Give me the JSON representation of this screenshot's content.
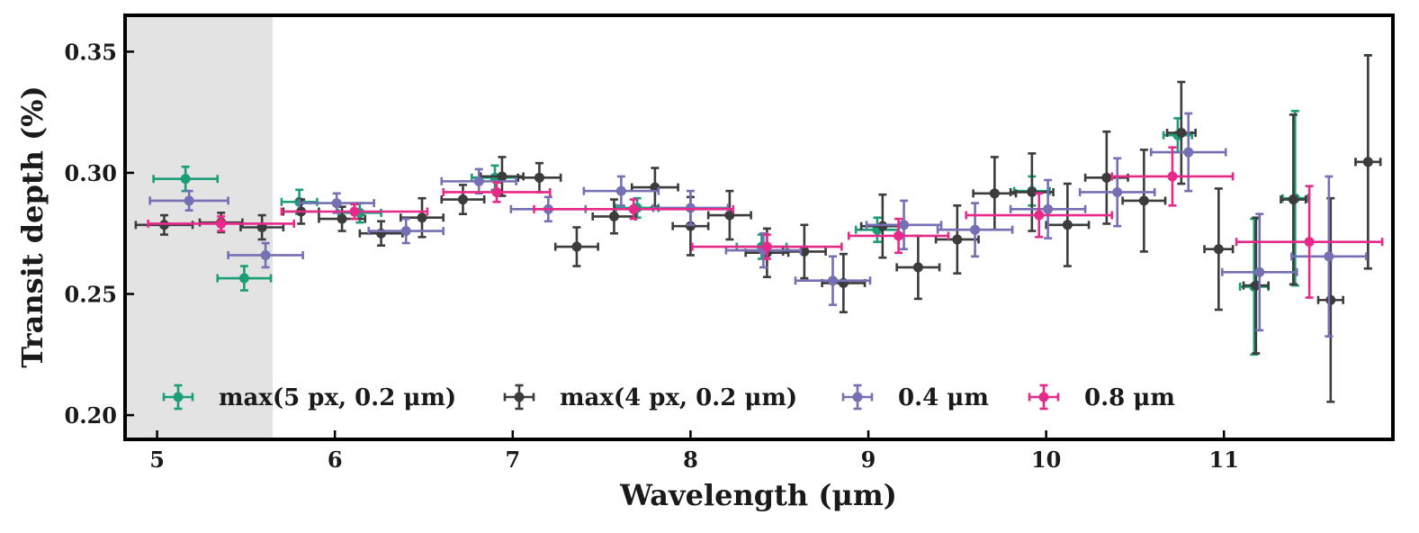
{
  "chart_data": {
    "type": "scatter",
    "title": "",
    "xlabel": "Wavelength (μm)",
    "ylabel": "Transit depth (%)",
    "xlim": [
      4.82,
      11.95
    ],
    "ylim": [
      0.19,
      0.365
    ],
    "x_ticks": [
      5,
      6,
      7,
      8,
      9,
      10,
      11
    ],
    "x_tick_labels": [
      "5",
      "6",
      "7",
      "8",
      "9",
      "10",
      "11"
    ],
    "y_ticks": [
      0.2,
      0.25,
      0.3,
      0.35
    ],
    "y_tick_labels": [
      "0.20",
      "0.25",
      "0.30",
      "0.35"
    ],
    "shaded_region": {
      "x_start": 4.82,
      "x_end": 5.65,
      "color": "#e3e3e3"
    },
    "grid": false,
    "legend_position": "bottom-left",
    "series": [
      {
        "name": "max(5 px, 0.2 μm)",
        "color": "#1b9e77",
        "points": [
          {
            "x": 5.16,
            "y": 0.2975,
            "xerr": 0.18,
            "yerr": 0.005
          },
          {
            "x": 5.49,
            "y": 0.2565,
            "xerr": 0.15,
            "yerr": 0.005
          },
          {
            "x": 5.8,
            "y": 0.288,
            "xerr": 0.1,
            "yerr": 0.005
          },
          {
            "x": 6.14,
            "y": 0.2835,
            "xerr": 0.12,
            "yerr": 0.004
          },
          {
            "x": 6.9,
            "y": 0.298,
            "xerr": 0.13,
            "yerr": 0.005
          },
          {
            "x": 7.7,
            "y": 0.2855,
            "xerr": 0.12,
            "yerr": 0.004
          },
          {
            "x": 8.4,
            "y": 0.2695,
            "xerr": 0.14,
            "yerr": 0.005
          },
          {
            "x": 9.05,
            "y": 0.2765,
            "xerr": 0.12,
            "yerr": 0.005
          },
          {
            "x": 9.92,
            "y": 0.2925,
            "xerr": 0.1,
            "yerr": 0.006
          },
          {
            "x": 10.74,
            "y": 0.3155,
            "xerr": 0.08,
            "yerr": 0.007
          },
          {
            "x": 11.17,
            "y": 0.253,
            "xerr": 0.08,
            "yerr": 0.028
          },
          {
            "x": 11.4,
            "y": 0.2895,
            "xerr": 0.07,
            "yerr": 0.036
          },
          {
            "x": 11.81,
            "y": 0.3045,
            "xerr": 0.07,
            "yerr": 0.044
          }
        ]
      },
      {
        "name": "max(4 px, 0.2 μm)",
        "color": "#3c3c3c",
        "points": [
          {
            "x": 5.04,
            "y": 0.2785,
            "xerr": 0.16,
            "yerr": 0.004
          },
          {
            "x": 5.36,
            "y": 0.2795,
            "xerr": 0.12,
            "yerr": 0.004
          },
          {
            "x": 5.59,
            "y": 0.2775,
            "xerr": 0.12,
            "yerr": 0.005
          },
          {
            "x": 5.81,
            "y": 0.284,
            "xerr": 0.1,
            "yerr": 0.005
          },
          {
            "x": 6.04,
            "y": 0.281,
            "xerr": 0.13,
            "yerr": 0.005
          },
          {
            "x": 6.26,
            "y": 0.275,
            "xerr": 0.12,
            "yerr": 0.005
          },
          {
            "x": 6.49,
            "y": 0.2815,
            "xerr": 0.12,
            "yerr": 0.008
          },
          {
            "x": 6.72,
            "y": 0.289,
            "xerr": 0.12,
            "yerr": 0.006
          },
          {
            "x": 6.94,
            "y": 0.2985,
            "xerr": 0.12,
            "yerr": 0.008
          },
          {
            "x": 7.15,
            "y": 0.298,
            "xerr": 0.12,
            "yerr": 0.006
          },
          {
            "x": 7.36,
            "y": 0.2695,
            "xerr": 0.12,
            "yerr": 0.008
          },
          {
            "x": 7.57,
            "y": 0.282,
            "xerr": 0.12,
            "yerr": 0.007
          },
          {
            "x": 7.8,
            "y": 0.294,
            "xerr": 0.13,
            "yerr": 0.008
          },
          {
            "x": 8.0,
            "y": 0.278,
            "xerr": 0.1,
            "yerr": 0.012
          },
          {
            "x": 8.22,
            "y": 0.2825,
            "xerr": 0.12,
            "yerr": 0.01
          },
          {
            "x": 8.43,
            "y": 0.267,
            "xerr": 0.12,
            "yerr": 0.01
          },
          {
            "x": 8.64,
            "y": 0.2675,
            "xerr": 0.12,
            "yerr": 0.011
          },
          {
            "x": 8.86,
            "y": 0.2545,
            "xerr": 0.12,
            "yerr": 0.012
          },
          {
            "x": 9.08,
            "y": 0.278,
            "xerr": 0.12,
            "yerr": 0.013
          },
          {
            "x": 9.28,
            "y": 0.261,
            "xerr": 0.12,
            "yerr": 0.013
          },
          {
            "x": 9.5,
            "y": 0.2725,
            "xerr": 0.12,
            "yerr": 0.014
          },
          {
            "x": 9.71,
            "y": 0.2915,
            "xerr": 0.12,
            "yerr": 0.015
          },
          {
            "x": 9.92,
            "y": 0.292,
            "xerr": 0.12,
            "yerr": 0.016
          },
          {
            "x": 10.12,
            "y": 0.2785,
            "xerr": 0.12,
            "yerr": 0.017
          },
          {
            "x": 10.34,
            "y": 0.298,
            "xerr": 0.12,
            "yerr": 0.019
          },
          {
            "x": 10.55,
            "y": 0.2885,
            "xerr": 0.12,
            "yerr": 0.021
          },
          {
            "x": 10.76,
            "y": 0.3165,
            "xerr": 0.08,
            "yerr": 0.021
          },
          {
            "x": 10.97,
            "y": 0.2685,
            "xerr": 0.08,
            "yerr": 0.025
          },
          {
            "x": 11.18,
            "y": 0.2535,
            "xerr": 0.07,
            "yerr": 0.028
          },
          {
            "x": 11.39,
            "y": 0.289,
            "xerr": 0.07,
            "yerr": 0.035
          },
          {
            "x": 11.6,
            "y": 0.2475,
            "xerr": 0.07,
            "yerr": 0.042
          },
          {
            "x": 11.81,
            "y": 0.3045,
            "xerr": 0.07,
            "yerr": 0.044
          }
        ]
      },
      {
        "name": "0.4 μm",
        "color": "#7570b3",
        "points": [
          {
            "x": 5.18,
            "y": 0.2885,
            "xerr": 0.22,
            "yerr": 0.004
          },
          {
            "x": 5.61,
            "y": 0.266,
            "xerr": 0.21,
            "yerr": 0.005
          },
          {
            "x": 6.01,
            "y": 0.2875,
            "xerr": 0.21,
            "yerr": 0.004
          },
          {
            "x": 6.4,
            "y": 0.276,
            "xerr": 0.21,
            "yerr": 0.005
          },
          {
            "x": 6.81,
            "y": 0.2965,
            "xerr": 0.21,
            "yerr": 0.005
          },
          {
            "x": 7.2,
            "y": 0.285,
            "xerr": 0.21,
            "yerr": 0.005
          },
          {
            "x": 7.61,
            "y": 0.2925,
            "xerr": 0.21,
            "yerr": 0.006
          },
          {
            "x": 8.0,
            "y": 0.2855,
            "xerr": 0.21,
            "yerr": 0.007
          },
          {
            "x": 8.41,
            "y": 0.268,
            "xerr": 0.21,
            "yerr": 0.007
          },
          {
            "x": 8.8,
            "y": 0.2555,
            "xerr": 0.21,
            "yerr": 0.01
          },
          {
            "x": 9.2,
            "y": 0.2785,
            "xerr": 0.21,
            "yerr": 0.01
          },
          {
            "x": 9.6,
            "y": 0.2765,
            "xerr": 0.21,
            "yerr": 0.011
          },
          {
            "x": 10.01,
            "y": 0.285,
            "xerr": 0.21,
            "yerr": 0.012
          },
          {
            "x": 10.4,
            "y": 0.292,
            "xerr": 0.21,
            "yerr": 0.014
          },
          {
            "x": 10.8,
            "y": 0.3085,
            "xerr": 0.21,
            "yerr": 0.016
          },
          {
            "x": 11.2,
            "y": 0.259,
            "xerr": 0.21,
            "yerr": 0.024
          },
          {
            "x": 11.59,
            "y": 0.2655,
            "xerr": 0.21,
            "yerr": 0.033
          }
        ]
      },
      {
        "name": "0.8 μm",
        "color": "#e7298a",
        "points": [
          {
            "x": 5.36,
            "y": 0.279,
            "xerr": 0.41,
            "yerr": 0.003
          },
          {
            "x": 6.11,
            "y": 0.284,
            "xerr": 0.41,
            "yerr": 0.003
          },
          {
            "x": 6.91,
            "y": 0.292,
            "xerr": 0.3,
            "yerr": 0.004
          },
          {
            "x": 7.68,
            "y": 0.285,
            "xerr": 0.56,
            "yerr": 0.004
          },
          {
            "x": 8.43,
            "y": 0.2695,
            "xerr": 0.42,
            "yerr": 0.005
          },
          {
            "x": 9.17,
            "y": 0.274,
            "xerr": 0.28,
            "yerr": 0.007
          },
          {
            "x": 9.96,
            "y": 0.2825,
            "xerr": 0.41,
            "yerr": 0.009
          },
          {
            "x": 10.71,
            "y": 0.2985,
            "xerr": 0.34,
            "yerr": 0.012
          },
          {
            "x": 11.48,
            "y": 0.2715,
            "xerr": 0.41,
            "yerr": 0.023
          }
        ]
      }
    ]
  }
}
